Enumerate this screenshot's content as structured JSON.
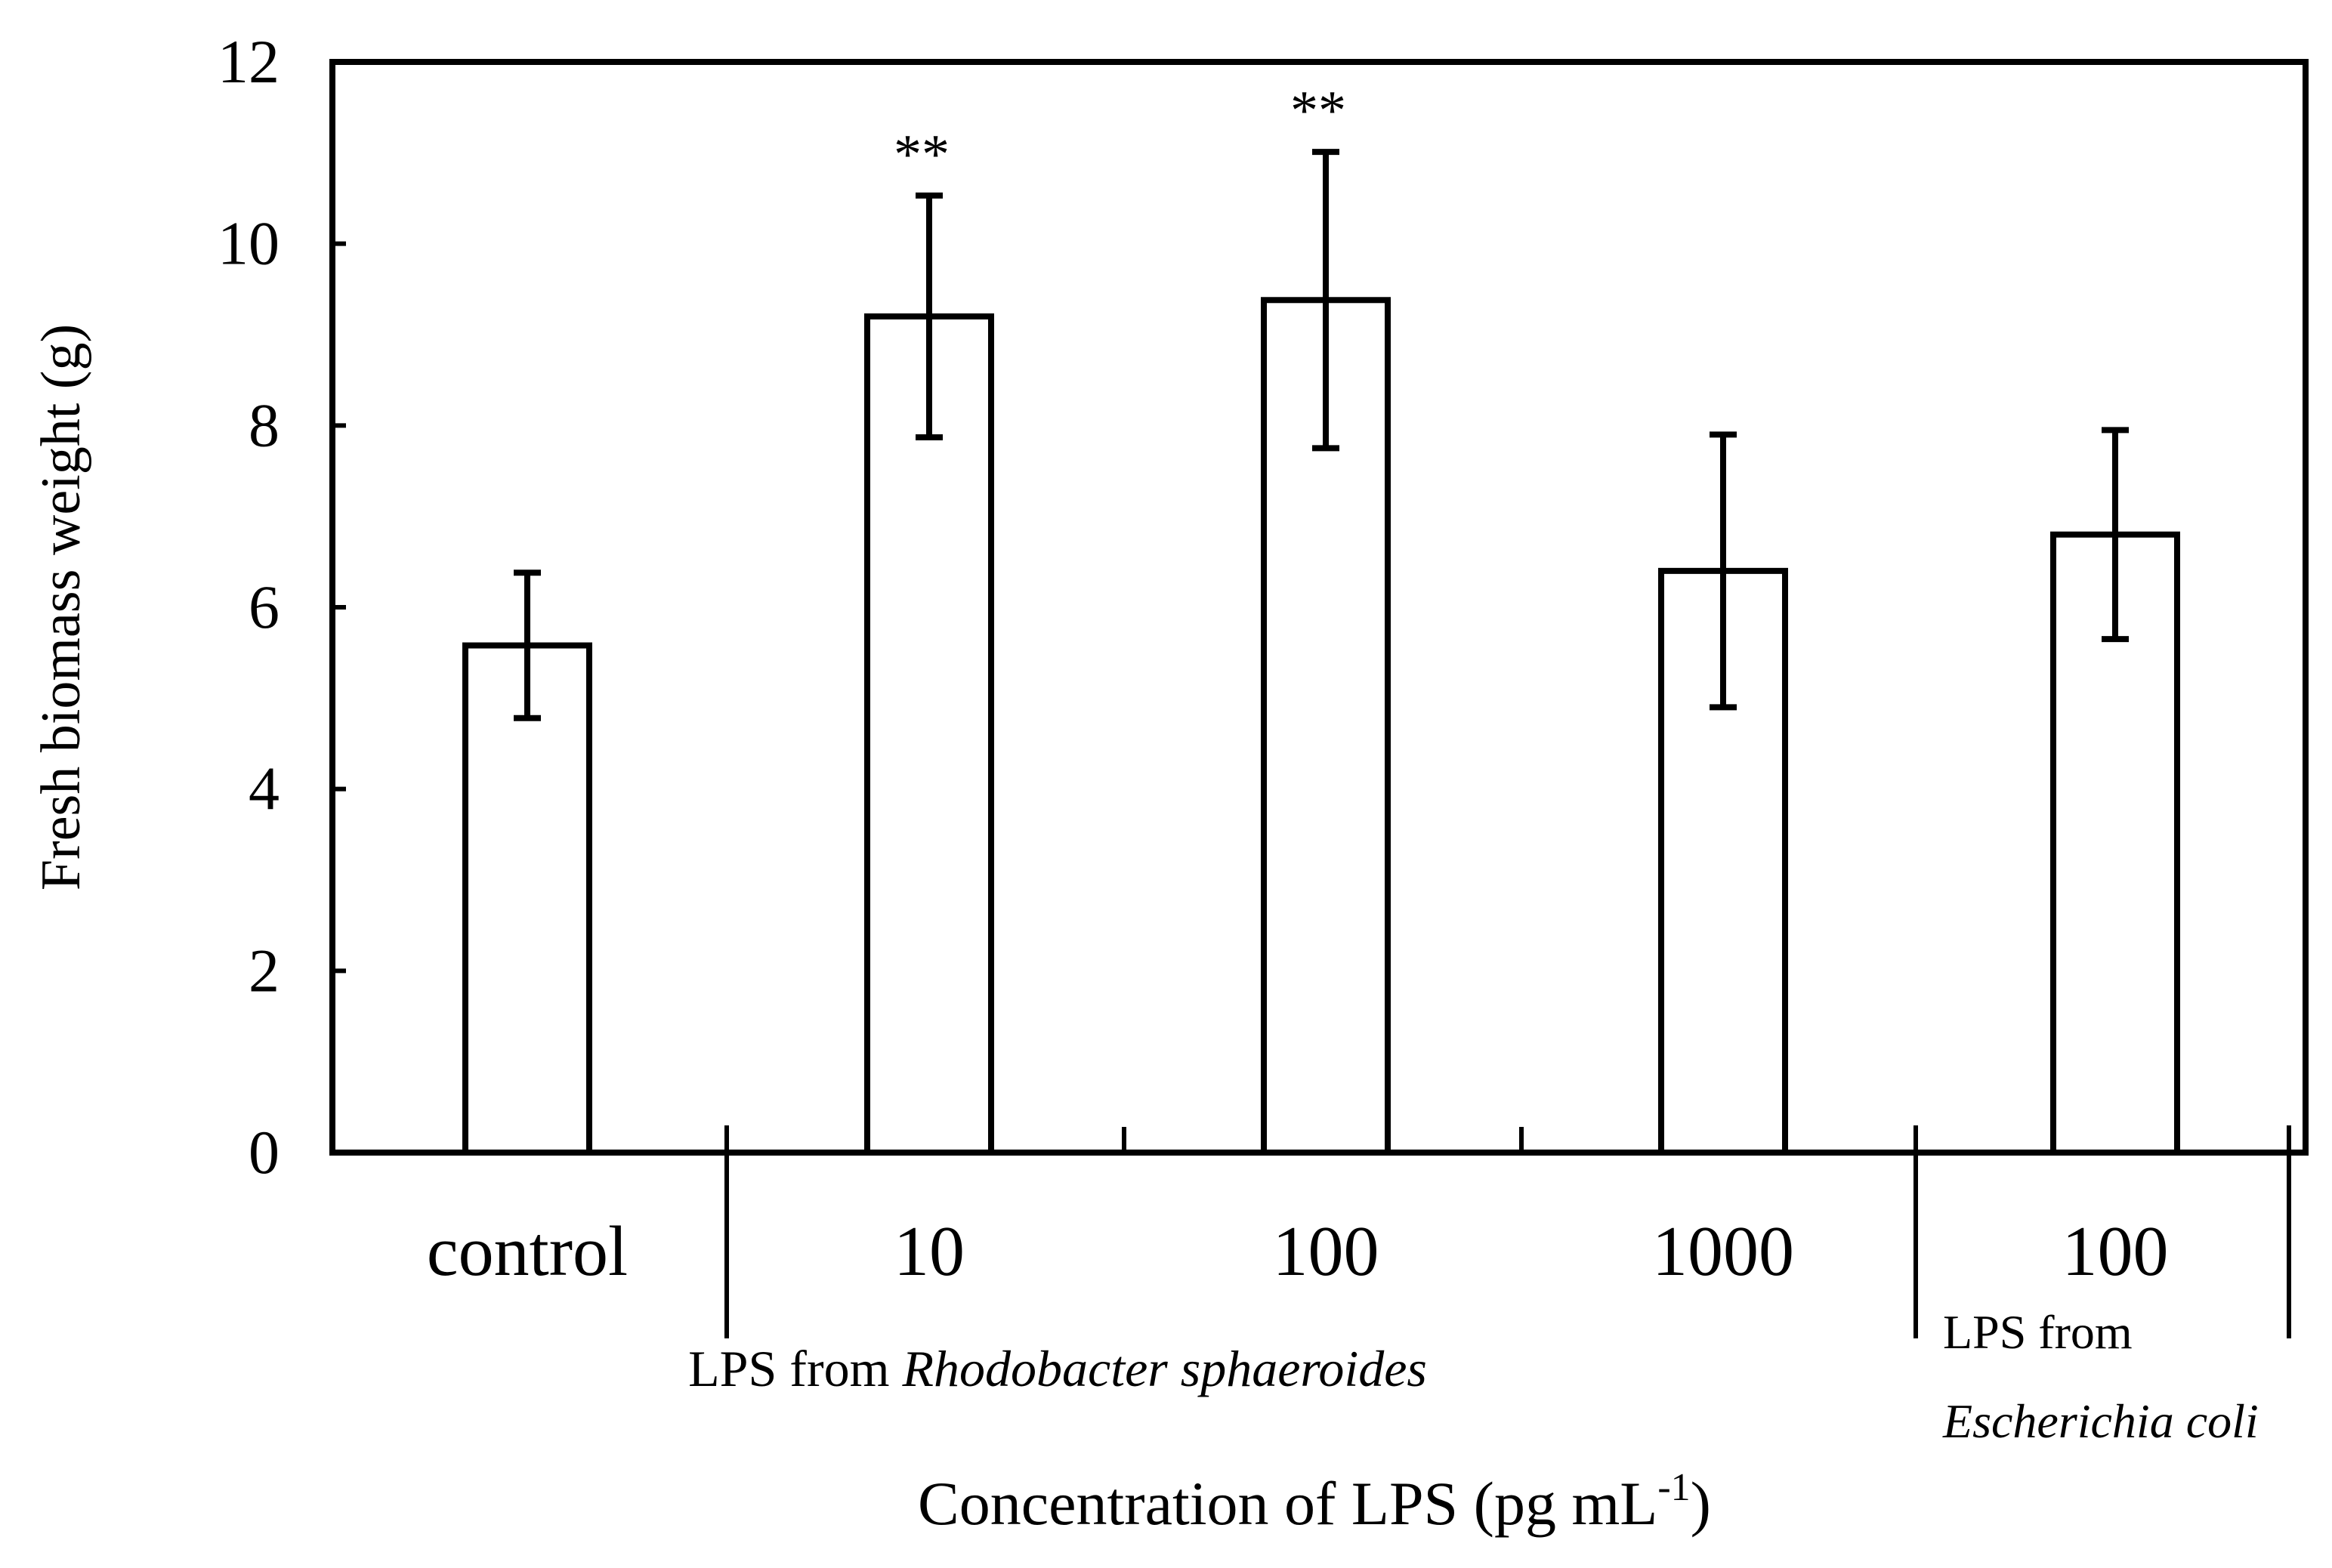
{
  "chart_data": {
    "type": "bar",
    "title": "",
    "xlabel": "Concentration of LPS (pg mL",
    "xlabel_superscript": "-1",
    "xlabel_suffix": ")",
    "ylabel": "Fresh biomass weight (g)",
    "ylim": [
      0,
      12
    ],
    "yticks": [
      "0",
      "2",
      "4",
      "6",
      "8",
      "10",
      "12"
    ],
    "categories": [
      "control",
      "10",
      "100",
      "1000",
      "100"
    ],
    "values": [
      5.58,
      9.2,
      9.38,
      6.4,
      6.8
    ],
    "errors": [
      0.8,
      1.33,
      1.63,
      1.5,
      1.15
    ],
    "significance": [
      "",
      "**",
      "**",
      "",
      ""
    ],
    "groups": [
      {
        "label": "LPS from",
        "label_italic": "Rhodobacter sphaeroides"
      },
      {
        "label": "LPS from",
        "label_italic": "Escherichia coli"
      }
    ],
    "legend": null,
    "grid": false,
    "bar_fill": "#ffffff",
    "stroke_color": "#000000"
  }
}
